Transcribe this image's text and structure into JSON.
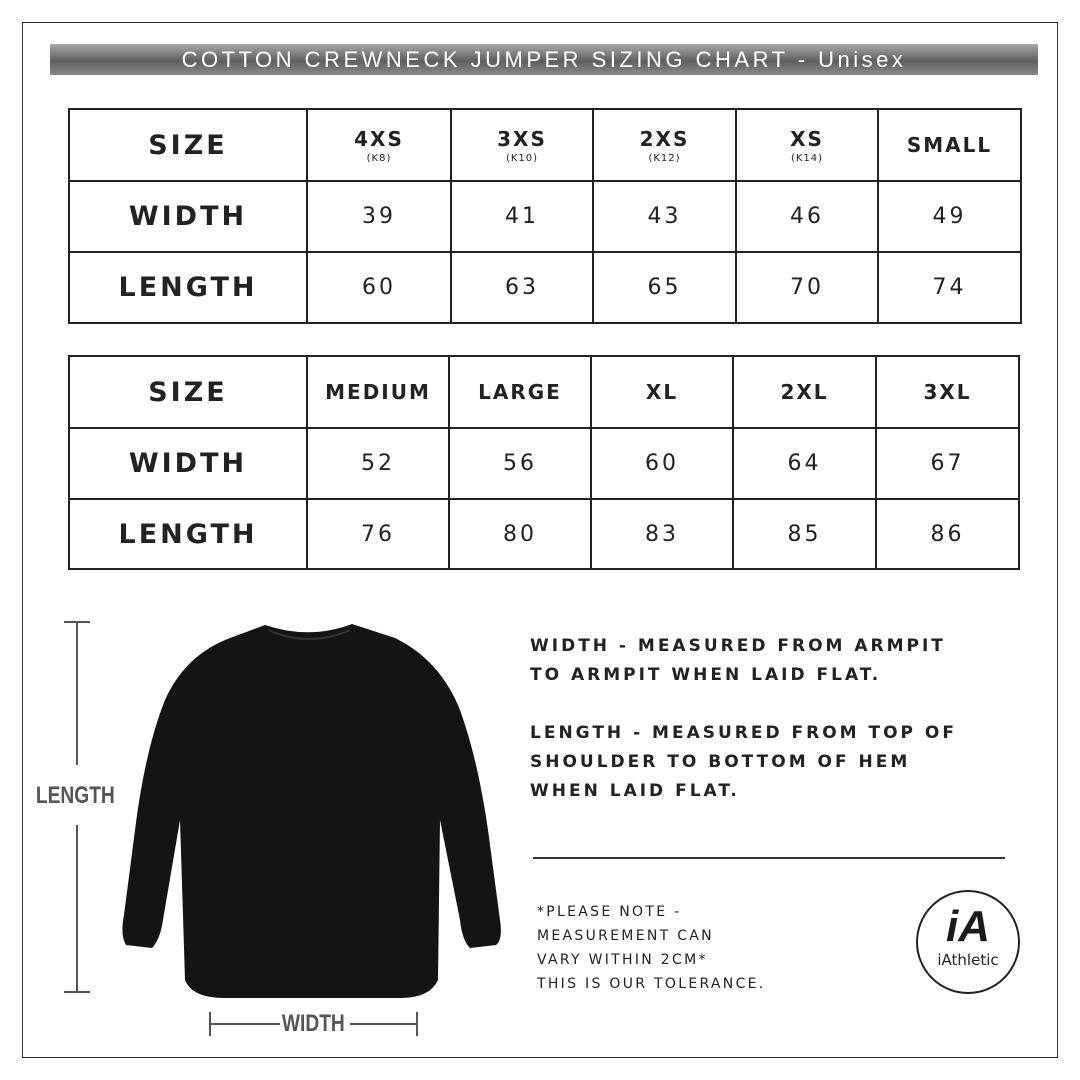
{
  "title": "COTTON CREWNECK JUMPER SIZING CHART - Unisex",
  "table1": {
    "size_label": "SIZE",
    "width_label": "WIDTH",
    "length_label": "LENGTH",
    "sizes": [
      {
        "name": "4XS",
        "sub": "(K8)"
      },
      {
        "name": "3XS",
        "sub": "(K10)"
      },
      {
        "name": "2XS",
        "sub": "(K12)"
      },
      {
        "name": "XS",
        "sub": "(K14)"
      },
      {
        "name": "SMALL",
        "sub": ""
      }
    ],
    "width": [
      "39",
      "41",
      "43",
      "46",
      "49"
    ],
    "length": [
      "60",
      "63",
      "65",
      "70",
      "74"
    ]
  },
  "table2": {
    "size_label": "SIZE",
    "width_label": "WIDTH",
    "length_label": "LENGTH",
    "sizes": [
      {
        "name": "MEDIUM"
      },
      {
        "name": "LARGE"
      },
      {
        "name": "XL"
      },
      {
        "name": "2XL"
      },
      {
        "name": "3XL"
      }
    ],
    "width": [
      "52",
      "56",
      "60",
      "64",
      "67"
    ],
    "length": [
      "76",
      "80",
      "83",
      "85",
      "86"
    ]
  },
  "diagram": {
    "length_label": "LENGTH",
    "width_label": "WIDTH"
  },
  "info": {
    "width_line1": "WIDTH - MEASURED FROM ARMPIT",
    "width_line2": "TO ARMPIT WHEN LAID FLAT.",
    "length_line1": "LENGTH - MEASURED FROM TOP OF",
    "length_line2": "SHOULDER TO BOTTOM OF HEM",
    "length_line3": "WHEN LAID FLAT."
  },
  "note": {
    "line1": "*PLEASE NOTE -",
    "line2": "MEASUREMENT CAN",
    "line3": "VARY WITHIN 2CM*",
    "line4": "THIS IS OUR TOLERANCE."
  },
  "logo": {
    "mark": "iA",
    "text": "iAthletic"
  }
}
